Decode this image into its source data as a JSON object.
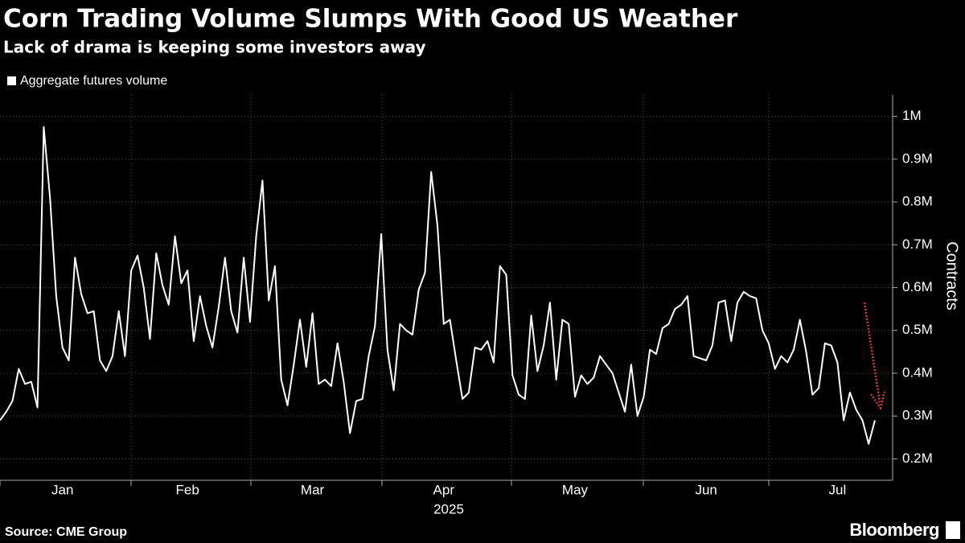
{
  "chart_data": {
    "type": "line",
    "title": "Corn Trading Volume Slumps With Good US Weather",
    "subtitle": "Lack of drama is keeping some investors away",
    "x_label": "2025",
    "y_label": "Contracts",
    "categories": [
      null,
      null,
      null,
      null,
      null,
      null,
      null,
      null,
      null,
      null,
      "Jan",
      null,
      null,
      null,
      null,
      null,
      null,
      null,
      null,
      null,
      null,
      null,
      null,
      null,
      null,
      null,
      null,
      null,
      null,
      null,
      "Feb",
      null,
      null,
      null,
      null,
      null,
      null,
      null,
      null,
      null,
      null,
      null,
      null,
      null,
      null,
      null,
      null,
      null,
      null,
      null,
      "Mar",
      null,
      null,
      null,
      null,
      null,
      null,
      null,
      null,
      null,
      null,
      null,
      null,
      null,
      null,
      null,
      null,
      null,
      null,
      null,
      null,
      "Apr",
      null,
      null,
      null,
      null,
      null,
      null,
      null,
      null,
      null,
      null,
      null,
      null,
      null,
      null,
      null,
      null,
      null,
      null,
      null,
      null,
      "May",
      null,
      null,
      null,
      null,
      null,
      null,
      null,
      null,
      null,
      null,
      null,
      null,
      null,
      null,
      null,
      null,
      null,
      null,
      null,
      null,
      "Jun",
      null,
      null,
      null,
      null,
      null,
      null,
      null,
      null,
      null,
      null,
      null,
      null,
      null,
      null,
      null,
      null,
      null,
      null,
      null,
      null,
      "Jul",
      null,
      null,
      null,
      null,
      null,
      null
    ],
    "series": [
      {
        "name": "Aggregate futures volume",
        "color": "#ffffff",
        "values": [
          290000,
          310000,
          335000,
          410000,
          375000,
          380000,
          320000,
          975000,
          810000,
          580000,
          460000,
          430000,
          670000,
          585000,
          540000,
          545000,
          430000,
          405000,
          440000,
          545000,
          440000,
          640000,
          675000,
          600000,
          480000,
          680000,
          605000,
          560000,
          720000,
          610000,
          640000,
          475000,
          580000,
          510000,
          460000,
          555000,
          670000,
          545000,
          495000,
          670000,
          520000,
          720000,
          850000,
          570000,
          650000,
          385000,
          325000,
          420000,
          525000,
          415000,
          540000,
          375000,
          385000,
          370000,
          470000,
          380000,
          260000,
          335000,
          340000,
          440000,
          510000,
          725000,
          455000,
          360000,
          515000,
          500000,
          490000,
          595000,
          635000,
          870000,
          745000,
          515000,
          525000,
          430000,
          340000,
          355000,
          460000,
          455000,
          475000,
          425000,
          650000,
          630000,
          395000,
          350000,
          340000,
          535000,
          405000,
          465000,
          565000,
          385000,
          525000,
          515000,
          345000,
          395000,
          375000,
          390000,
          440000,
          420000,
          400000,
          355000,
          310000,
          420000,
          300000,
          345000,
          455000,
          445000,
          505000,
          515000,
          550000,
          560000,
          580000,
          440000,
          435000,
          430000,
          465000,
          565000,
          570000,
          475000,
          565000,
          590000,
          580000,
          575000,
          500000,
          470000,
          410000,
          440000,
          425000,
          455000,
          525000,
          450000,
          350000,
          365000,
          470000,
          465000,
          425000,
          290000,
          355000,
          315000,
          290000,
          235000,
          290000
        ]
      }
    ],
    "ylim": [
      150000,
      1050000
    ],
    "yticks": [
      {
        "value": 200000,
        "label": "0.2M"
      },
      {
        "value": 300000,
        "label": "0.3M"
      },
      {
        "value": 400000,
        "label": "0.4M"
      },
      {
        "value": 500000,
        "label": "0.5M"
      },
      {
        "value": 600000,
        "label": "0.6M"
      },
      {
        "value": 700000,
        "label": "0.7M"
      },
      {
        "value": 800000,
        "label": "0.8M"
      },
      {
        "value": 900000,
        "label": "0.9M"
      },
      {
        "value": 1000000,
        "label": "1M"
      }
    ],
    "grid": true
  },
  "footer": {
    "source": "Source: CME Group",
    "brand": "Bloomberg"
  }
}
